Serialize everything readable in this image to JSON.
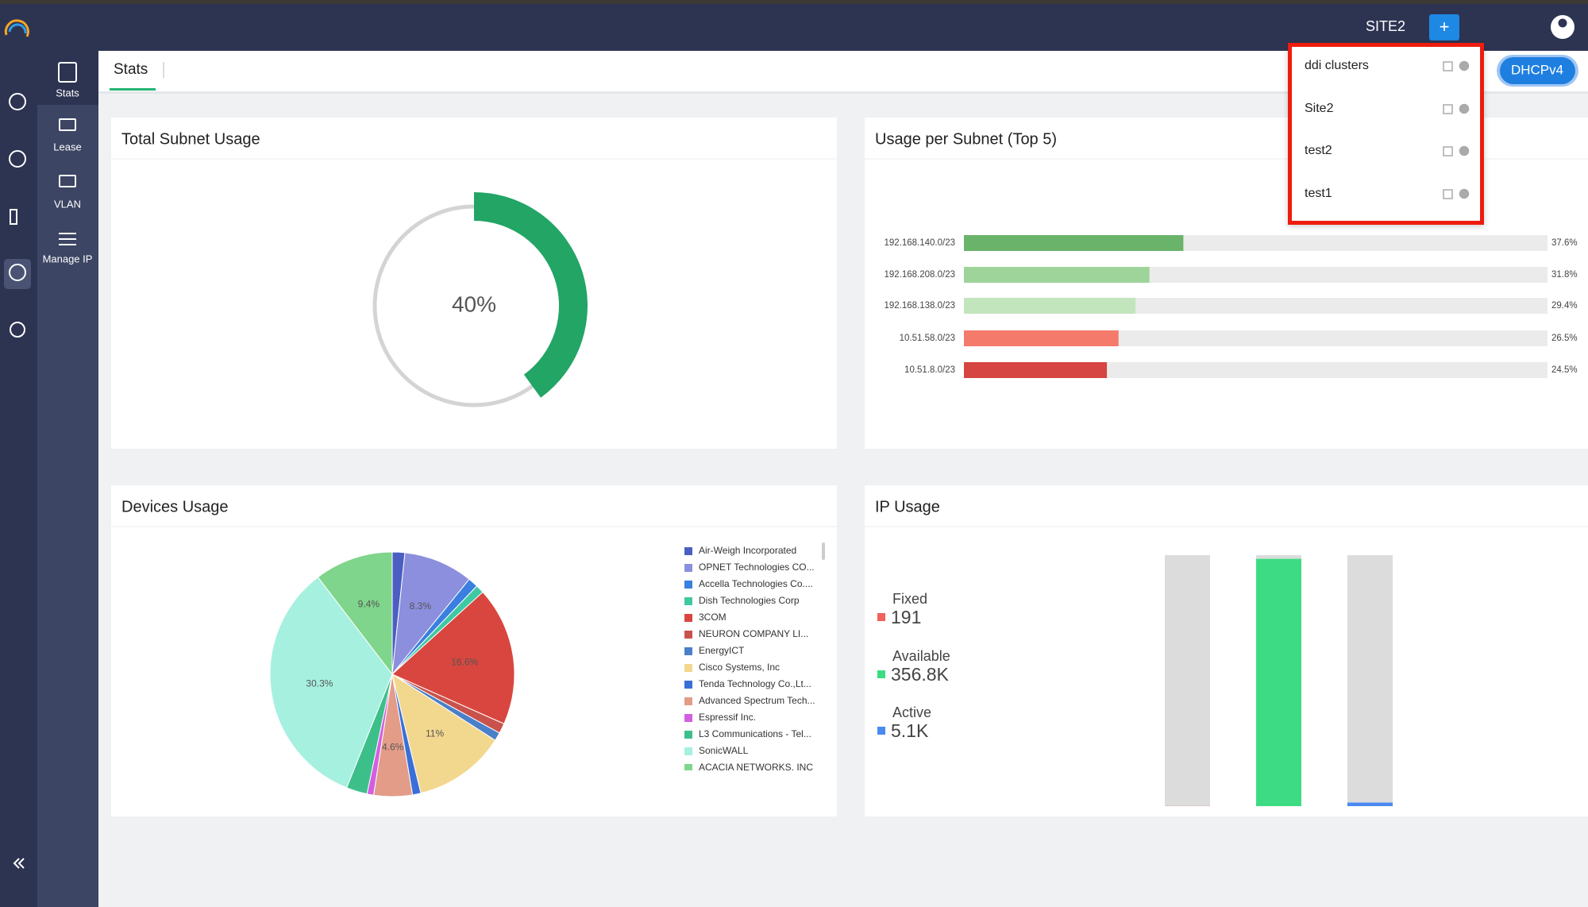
{
  "header": {
    "site_name": "SITE2",
    "add_button": "+"
  },
  "sidebar": {
    "items": [
      "Stats",
      "Lease",
      "VLAN",
      "Manage IP"
    ]
  },
  "tabs": [
    "Stats"
  ],
  "protocol_button": "DHCPv4",
  "site_dropdown": {
    "items": [
      "ddi clusters",
      "Site2",
      "test2",
      "test1"
    ]
  },
  "chart_data": [
    {
      "type": "donut",
      "title": "Total Subnet Usage",
      "values": [
        40
      ],
      "value_labels": [
        "40%"
      ],
      "ylim": [
        0,
        100
      ],
      "color": "#22a565"
    },
    {
      "type": "hbar",
      "title": "Usage per Subnet (Top 5)",
      "categories": [
        "192.168.140.0/23",
        "192.168.208.0/23",
        "192.168.138.0/23",
        "10.51.58.0/23",
        "10.51.8.0/23"
      ],
      "values": [
        37.6,
        31.8,
        29.4,
        26.5,
        24.5
      ],
      "value_labels": [
        "37.6%",
        "31.8%",
        "29.4%",
        "26.5%",
        "24.5%"
      ],
      "colors": [
        "#6ab36a",
        "#9ed49a",
        "#c3e5be",
        "#f47a6c",
        "#d64541"
      ],
      "xlim": [
        0,
        100
      ]
    },
    {
      "type": "pie",
      "title": "Devices Usage",
      "categories": [
        "Air-Weigh Incorporated",
        "OPNET Technologies CO...",
        "Accella Technologies Co....",
        "Dish Technologies Corp",
        "3COM",
        "NEURON COMPANY LI...",
        "EnergyICT",
        "Cisco Systems, Inc",
        "Tenda Technology Co.,Lt...",
        "Advanced Spectrum Tech...",
        "Espressif Inc.",
        "L3 Communications - Tel...",
        "SonicWALL",
        "ACACIA NETWORKS, INC"
      ],
      "values": [
        1.5,
        8.3,
        1.2,
        1.0,
        16.6,
        1.2,
        1.0,
        11,
        1.0,
        4.6,
        0.8,
        2.5,
        30.3,
        9.4
      ],
      "value_labels": [
        null,
        "8.3%",
        null,
        null,
        "16.6%",
        null,
        null,
        "11%",
        null,
        "4.6%",
        null,
        null,
        "30.3%",
        "9.4%"
      ],
      "colors": [
        "#4b5fc2",
        "#8c8fdd",
        "#3b7fe0",
        "#3fc9a2",
        "#d9463f",
        "#c9524c",
        "#4a7fc9",
        "#f2d88e",
        "#3a6fd8",
        "#e39c88",
        "#d35fe0",
        "#3dbf8a",
        "#a6f0e0",
        "#7fd58b"
      ]
    },
    {
      "type": "column",
      "title": "IP Usage",
      "categories": [
        "Fixed",
        "Available",
        "Active"
      ],
      "values": [
        191,
        356800,
        5100
      ],
      "value_labels": [
        "191",
        "356.8K",
        "5.1K"
      ],
      "colors": [
        "#f0625a",
        "#3ddc84",
        "#4a8af0"
      ]
    }
  ]
}
